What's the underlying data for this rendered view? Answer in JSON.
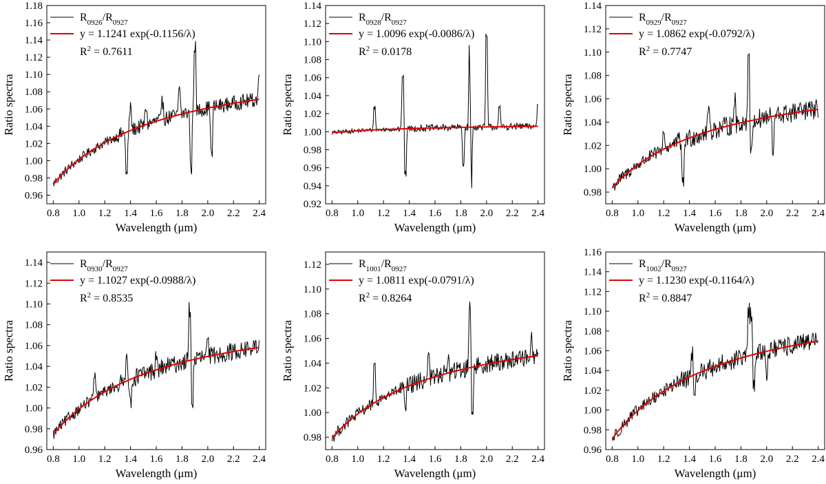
{
  "chart_data": [
    {
      "type": "line",
      "xlabel": "Wavelength (μm)",
      "ylabel": "Ratio spectra",
      "xlim": [
        0.75,
        2.45
      ],
      "ylim": [
        0.95,
        1.18
      ],
      "xticks": [
        "0.8",
        "1.0",
        "1.2",
        "1.4",
        "1.6",
        "1.8",
        "2.0",
        "2.2",
        "2.4"
      ],
      "yticks": [
        "0.96",
        "0.98",
        "1.00",
        "1.02",
        "1.04",
        "1.06",
        "1.08",
        "1.10",
        "1.12",
        "1.14",
        "1.16",
        "1.18"
      ],
      "legend_position": "top-left",
      "series": [
        {
          "name_main": "R",
          "name_sub1": "0926",
          "name_mid": "/R",
          "name_sub2": "0927",
          "color": "#000000"
        },
        {
          "name": "y = 1.1241 exp(-0.1156/λ)",
          "color": "#e00000",
          "a": 1.1241,
          "b": 0.1156
        }
      ],
      "r2_label": "R",
      "r2_sup": "2",
      "r2_value": " = 0.7611",
      "features": [
        [
          1.37,
          -0.05
        ],
        [
          1.4,
          0.025
        ],
        [
          1.9,
          0.075
        ],
        [
          1.87,
          -0.065
        ],
        [
          2.03,
          -0.055
        ],
        [
          2.4,
          0.028
        ],
        [
          1.52,
          0.02
        ],
        [
          1.78,
          0.03
        ],
        [
          1.65,
          0.02
        ]
      ],
      "noise": 0.007
    },
    {
      "type": "line",
      "xlabel": "Wavelength (μm)",
      "ylabel": "Ratio spectra",
      "xlim": [
        0.75,
        2.45
      ],
      "ylim": [
        0.92,
        1.14
      ],
      "xticks": [
        "0.8",
        "1.0",
        "1.2",
        "1.4",
        "1.6",
        "1.8",
        "2.0",
        "2.2",
        "2.4"
      ],
      "yticks": [
        "0.92",
        "0.94",
        "0.96",
        "0.98",
        "1.00",
        "1.02",
        "1.04",
        "1.06",
        "1.08",
        "1.10",
        "1.12",
        "1.14"
      ],
      "legend_position": "top-left",
      "series": [
        {
          "name_main": "R",
          "name_sub1": "0928",
          "name_mid": "/R",
          "name_sub2": "0927",
          "color": "#000000"
        },
        {
          "name": "y = 1.0096 exp(-0.0086/λ)",
          "color": "#e00000",
          "a": 1.0096,
          "b": 0.0086
        }
      ],
      "r2_label": "R",
      "r2_sup": "2",
      "r2_value": " = 0.0178",
      "features": [
        [
          1.35,
          0.06
        ],
        [
          1.37,
          -0.05
        ],
        [
          1.87,
          0.09
        ],
        [
          1.88,
          -0.07
        ],
        [
          2.0,
          0.1
        ],
        [
          1.82,
          -0.04
        ],
        [
          2.4,
          0.025
        ],
        [
          1.13,
          0.025
        ],
        [
          2.1,
          0.02
        ]
      ],
      "noise": 0.003
    },
    {
      "type": "line",
      "xlabel": "Wavelength (μm)",
      "ylabel": "Ratio spectra",
      "xlim": [
        0.75,
        2.45
      ],
      "ylim": [
        0.97,
        1.14
      ],
      "xticks": [
        "0.8",
        "1.0",
        "1.2",
        "1.4",
        "1.6",
        "1.8",
        "2.0",
        "2.2",
        "2.4"
      ],
      "yticks": [
        "0.98",
        "1.00",
        "1.02",
        "1.04",
        "1.06",
        "1.08",
        "1.10",
        "1.12",
        "1.14"
      ],
      "legend_position": "top-left",
      "series": [
        {
          "name_main": "R",
          "name_sub1": "0929",
          "name_mid": "/R",
          "name_sub2": "0927",
          "color": "#000000"
        },
        {
          "name": "y = 1.0862 exp(-0.0792/λ)",
          "color": "#e00000",
          "a": 1.0862,
          "b": 0.0792
        }
      ],
      "r2_label": "R",
      "r2_sup": "2",
      "r2_value": " = 0.7747",
      "features": [
        [
          1.35,
          -0.04
        ],
        [
          1.86,
          0.058
        ],
        [
          1.88,
          -0.03
        ],
        [
          1.55,
          0.02
        ],
        [
          2.05,
          -0.03
        ],
        [
          1.2,
          0.015
        ],
        [
          1.75,
          0.02
        ]
      ],
      "noise": 0.007
    },
    {
      "type": "line",
      "xlabel": "Wavelength (μm)",
      "ylabel": "Ratio spectra",
      "xlim": [
        0.75,
        2.45
      ],
      "ylim": [
        0.96,
        1.15
      ],
      "xticks": [
        "0.8",
        "1.0",
        "1.2",
        "1.4",
        "1.6",
        "1.8",
        "2.0",
        "2.2",
        "2.4"
      ],
      "yticks": [
        "0.96",
        "0.98",
        "1.00",
        "1.02",
        "1.04",
        "1.06",
        "1.08",
        "1.10",
        "1.12",
        "1.14"
      ],
      "legend_position": "top-left",
      "series": [
        {
          "name_main": "R",
          "name_sub1": "0930",
          "name_mid": "/R",
          "name_sub2": "0927",
          "color": "#000000"
        },
        {
          "name": "y = 1.1027 exp(-0.0988/λ)",
          "color": "#e00000",
          "a": 1.1027,
          "b": 0.0988
        }
      ],
      "r2_label": "R",
      "r2_sup": "2",
      "r2_value": " = 0.8535",
      "features": [
        [
          1.12,
          0.02
        ],
        [
          1.37,
          0.028
        ],
        [
          1.4,
          -0.025
        ],
        [
          1.86,
          0.05
        ],
        [
          1.88,
          -0.04
        ],
        [
          1.6,
          0.01
        ],
        [
          2.0,
          0.012
        ]
      ],
      "noise": 0.007
    },
    {
      "type": "line",
      "xlabel": "Wavelength (μm)",
      "ylabel": "Ratio spectra",
      "xlim": [
        0.75,
        2.45
      ],
      "ylim": [
        0.97,
        1.13
      ],
      "xticks": [
        "0.8",
        "1.0",
        "1.2",
        "1.4",
        "1.6",
        "1.8",
        "2.0",
        "2.2",
        "2.4"
      ],
      "yticks": [
        "0.98",
        "1.00",
        "1.02",
        "1.04",
        "1.06",
        "1.08",
        "1.10",
        "1.12"
      ],
      "legend_position": "top-left",
      "series": [
        {
          "name_main": "R",
          "name_sub1": "1001",
          "name_mid": "/R",
          "name_sub2": "0927",
          "color": "#000000"
        },
        {
          "name": "y = 1.0811 exp(-0.0791/λ)",
          "color": "#e00000",
          "a": 1.0811,
          "b": 0.0791
        }
      ],
      "r2_label": "R",
      "r2_sup": "2",
      "r2_value": " = 0.8264",
      "features": [
        [
          1.13,
          0.027
        ],
        [
          1.37,
          -0.02
        ],
        [
          1.55,
          0.022
        ],
        [
          1.87,
          0.05
        ],
        [
          1.89,
          -0.035
        ],
        [
          2.35,
          0.015
        ],
        [
          1.7,
          0.012
        ]
      ],
      "noise": 0.006
    },
    {
      "type": "line",
      "xlabel": "Wavelength (μm)",
      "ylabel": "Ratio spectra",
      "xlim": [
        0.75,
        2.45
      ],
      "ylim": [
        0.96,
        1.16
      ],
      "xticks": [
        "0.8",
        "1.0",
        "1.2",
        "1.4",
        "1.6",
        "1.8",
        "2.0",
        "2.2",
        "2.4"
      ],
      "yticks": [
        "0.96",
        "0.98",
        "1.00",
        "1.02",
        "1.04",
        "1.06",
        "1.08",
        "1.10",
        "1.12",
        "1.14",
        "1.16"
      ],
      "legend_position": "top-left",
      "series": [
        {
          "name_main": "R",
          "name_sub1": "1002",
          "name_mid": "/R",
          "name_sub2": "0927",
          "color": "#000000"
        },
        {
          "name": "y = 1.1230 exp(-0.1164/λ)",
          "color": "#e00000",
          "a": 1.123,
          "b": 0.1164
        }
      ],
      "r2_label": "R",
      "r2_sup": "2",
      "r2_value": " = 0.8847",
      "features": [
        [
          1.86,
          0.045
        ],
        [
          1.88,
          0.04
        ],
        [
          1.9,
          -0.03
        ],
        [
          1.42,
          0.025
        ],
        [
          1.44,
          -0.03
        ],
        [
          2.0,
          -0.02
        ],
        [
          2.36,
          0.012
        ]
      ],
      "noise": 0.008
    }
  ]
}
